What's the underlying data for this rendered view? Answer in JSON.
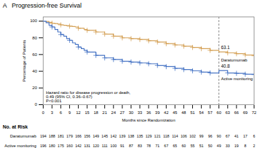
{
  "chart_data": {
    "type": "step",
    "title": "A   Progression-free Survival",
    "xlabel": "Months since Randomization",
    "ylabel": "Percentage of Patients",
    "xlim": [
      0,
      72
    ],
    "ylim": [
      0,
      105
    ],
    "xticks": [
      0,
      3,
      6,
      9,
      12,
      15,
      18,
      21,
      24,
      27,
      30,
      33,
      36,
      39,
      42,
      45,
      48,
      51,
      54,
      57,
      60,
      63,
      66,
      69,
      72
    ],
    "yticks": [
      0,
      20,
      40,
      60,
      80,
      100
    ],
    "grid": false,
    "vline_x": 60,
    "annotation": "Hazard ratio for disease progression or death,\n0.49 (95% CI, 0.36–0.67)\nP<0.001",
    "series": [
      {
        "name": "Daratumumab",
        "color": "#D4A054",
        "marker": "+",
        "endpoint_label": "63.1",
        "x": [
          0,
          1,
          2,
          3,
          4,
          5,
          6,
          7,
          8,
          9,
          10,
          11,
          12,
          14,
          15,
          18,
          21,
          24,
          27,
          30,
          33,
          36,
          39,
          42,
          45,
          48,
          51,
          54,
          57,
          60,
          63,
          66,
          69,
          72
        ],
        "values": [
          100,
          99.5,
          98.5,
          97.5,
          97,
          96.5,
          95.5,
          95,
          94.5,
          94,
          93.5,
          93,
          91.5,
          90,
          89,
          87,
          84.5,
          82,
          80,
          79,
          78,
          76.5,
          75,
          73,
          71.5,
          70,
          68.5,
          67,
          65,
          63.1,
          62,
          61,
          59.5,
          58.5
        ],
        "censor_x": [
          3,
          6,
          9,
          12,
          15,
          18,
          21,
          24,
          27,
          30,
          33,
          36,
          39,
          42,
          45,
          48,
          51,
          54,
          57,
          63,
          66,
          69,
          72
        ],
        "censor_values": [
          97.5,
          95.5,
          94,
          91.5,
          89,
          87,
          84.5,
          82,
          80,
          79,
          78,
          76.5,
          75,
          73,
          71.5,
          70,
          68.5,
          67,
          65,
          62,
          61,
          59.5,
          58.5
        ]
      },
      {
        "name": "Active monitoring",
        "color": "#4472C4",
        "marker": "+",
        "endpoint_label": "40.8",
        "x": [
          0,
          1,
          2,
          3,
          4,
          5,
          6,
          7,
          8,
          9,
          10,
          11,
          12,
          13,
          14,
          15,
          18,
          21,
          24,
          27,
          30,
          33,
          36,
          39,
          42,
          45,
          48,
          51,
          54,
          57,
          60,
          63,
          66,
          69,
          72
        ],
        "values": [
          100,
          98,
          95,
          93,
          90,
          87,
          84,
          82,
          79,
          77,
          74,
          72,
          69,
          67,
          65,
          63,
          59,
          56,
          54,
          52,
          51,
          50,
          49,
          47,
          45.5,
          43.5,
          42,
          40.5,
          39,
          38,
          40.8,
          38,
          37.5,
          36.5,
          36
        ],
        "censor_x": [
          3,
          6,
          9,
          12,
          15,
          18,
          21,
          24,
          27,
          30,
          33,
          36,
          39,
          42,
          45,
          48,
          51,
          54,
          57,
          63,
          66,
          69,
          72
        ],
        "censor_values": [
          93,
          84,
          77,
          69,
          63,
          59,
          56,
          54,
          52,
          51,
          50,
          49,
          47,
          45.5,
          43.5,
          42,
          40.5,
          39,
          38,
          38,
          37.5,
          36.5,
          36
        ]
      }
    ],
    "risk_table": {
      "title": "No. at Risk",
      "x": [
        0,
        3,
        6,
        9,
        12,
        15,
        18,
        21,
        24,
        27,
        30,
        33,
        36,
        39,
        42,
        45,
        48,
        51,
        54,
        57,
        60,
        63,
        66,
        69,
        72
      ],
      "rows": [
        {
          "name": "Daratumumab",
          "values": [
            194,
            188,
            181,
            179,
            166,
            156,
            149,
            145,
            142,
            139,
            138,
            135,
            129,
            121,
            118,
            114,
            106,
            102,
            99,
            96,
            90,
            67,
            41,
            17,
            6
          ]
        },
        {
          "name": "Active monitoring",
          "values": [
            196,
            180,
            175,
            160,
            142,
            131,
            120,
            111,
            100,
            91,
            87,
            83,
            78,
            71,
            67,
            65,
            60,
            55,
            51,
            50,
            49,
            33,
            19,
            8,
            2
          ]
        }
      ]
    }
  }
}
